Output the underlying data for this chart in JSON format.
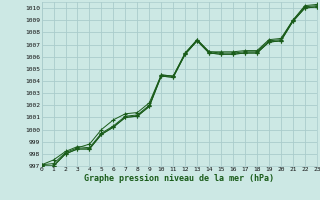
{
  "title": "Graphe pression niveau de la mer (hPa)",
  "bg_color": "#cce8e4",
  "grid_color": "#aacccc",
  "line_color": "#1a5c1a",
  "xlim": [
    0,
    23
  ],
  "ylim": [
    997,
    1010.5
  ],
  "xticks": [
    0,
    1,
    2,
    3,
    4,
    5,
    6,
    7,
    8,
    9,
    10,
    11,
    12,
    13,
    14,
    15,
    16,
    17,
    18,
    19,
    20,
    21,
    22,
    23
  ],
  "yticks": [
    997,
    998,
    999,
    1000,
    1001,
    1002,
    1003,
    1004,
    1005,
    1006,
    1007,
    1008,
    1009,
    1010
  ],
  "lines": [
    [
      997.1,
      997.5,
      998.2,
      998.6,
      998.5,
      999.7,
      1000.3,
      1001.1,
      1001.2,
      1002.0,
      1004.5,
      1004.4,
      1006.3,
      1007.4,
      1006.4,
      1006.3,
      1006.3,
      1006.4,
      1006.4,
      1007.3,
      1007.4,
      1009.0,
      1010.1,
      1010.2
    ],
    [
      997.1,
      997.2,
      998.1,
      998.5,
      998.8,
      1000.0,
      1000.8,
      1001.3,
      1001.4,
      1002.2,
      1004.5,
      1004.4,
      1006.3,
      1007.4,
      1006.4,
      1006.4,
      1006.4,
      1006.5,
      1006.5,
      1007.4,
      1007.5,
      1009.0,
      1010.2,
      1010.3
    ],
    [
      997.0,
      997.0,
      998.0,
      998.4,
      998.4,
      999.6,
      1000.2,
      1001.0,
      1001.1,
      1001.9,
      1004.4,
      1004.3,
      1006.2,
      1007.3,
      1006.3,
      1006.2,
      1006.2,
      1006.3,
      1006.3,
      1007.2,
      1007.3,
      1008.9,
      1010.0,
      1010.1
    ],
    [
      997.0,
      997.0,
      998.0,
      998.4,
      998.4,
      999.6,
      1000.2,
      1001.0,
      1001.1,
      1001.9,
      1004.4,
      1004.3,
      1006.2,
      1007.3,
      1006.3,
      1006.2,
      1006.2,
      1006.3,
      1006.3,
      1007.2,
      1007.3,
      1008.9,
      1010.0,
      1010.1
    ]
  ],
  "tickfontsize": 4.5,
  "xlabel_fontsize": 6.0
}
